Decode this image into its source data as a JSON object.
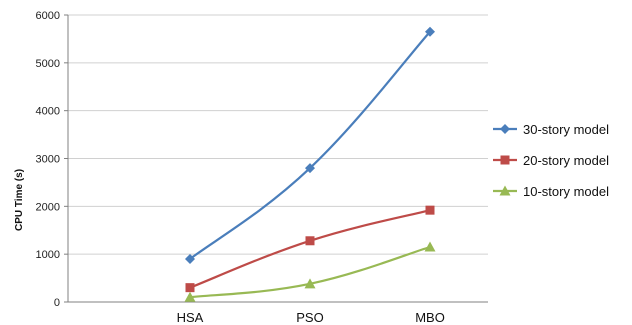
{
  "chart_data": {
    "type": "line",
    "title": "",
    "xlabel": "",
    "ylabel": "CPU Time (s)",
    "categories": [
      "HSA",
      "PSO",
      "MBO"
    ],
    "ylim": [
      0,
      6000
    ],
    "yticks": [
      0,
      1000,
      2000,
      3000,
      4000,
      5000,
      6000
    ],
    "grid": "horizontal",
    "legend_position": "right",
    "series": [
      {
        "name": "30-story model",
        "values": [
          900,
          2800,
          5650
        ],
        "color": "#4a7ebb",
        "marker": "diamond"
      },
      {
        "name": "20-story model",
        "values": [
          300,
          1280,
          1920
        ],
        "color": "#be4b48",
        "marker": "square"
      },
      {
        "name": "10-story model",
        "values": [
          100,
          380,
          1150
        ],
        "color": "#98b954",
        "marker": "triangle"
      }
    ]
  }
}
